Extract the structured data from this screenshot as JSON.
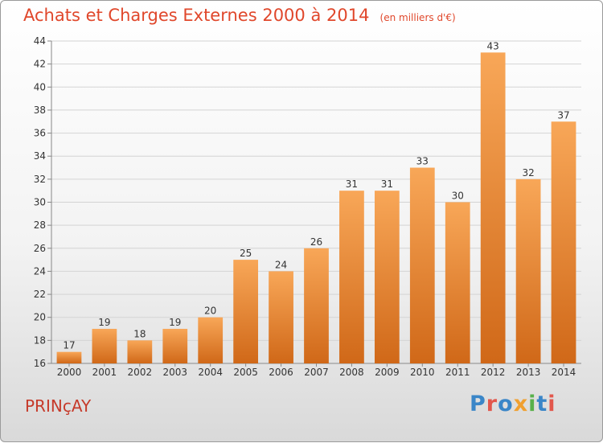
{
  "header": {
    "title": "Achats et Charges Externes 2000 à 2014",
    "unit": "(en milliers d'€)"
  },
  "footer": {
    "commune": "PRINçAY",
    "logo_text": "Proxiti",
    "logo_colors": [
      "#3a86c8",
      "#e2574c",
      "#3a86c8",
      "#f0a030",
      "#58b14b",
      "#3a86c8",
      "#e2574c"
    ]
  },
  "chart_data": {
    "type": "bar",
    "categories": [
      "2000",
      "2001",
      "2002",
      "2003",
      "2004",
      "2005",
      "2006",
      "2007",
      "2008",
      "2009",
      "2010",
      "2011",
      "2012",
      "2013",
      "2014"
    ],
    "values": [
      17,
      19,
      18,
      19,
      20,
      25,
      24,
      26,
      31,
      31,
      33,
      30,
      43,
      32,
      37
    ],
    "title": "Achats et Charges Externes 2000 à 2014",
    "xlabel": "",
    "ylabel": "",
    "ylim": [
      16,
      44
    ],
    "yticks": [
      16,
      18,
      20,
      22,
      24,
      26,
      28,
      30,
      32,
      34,
      36,
      38,
      40,
      42,
      44
    ],
    "grid": true,
    "bar_color_top": "#f8a758",
    "bar_color_bottom": "#d06818"
  }
}
